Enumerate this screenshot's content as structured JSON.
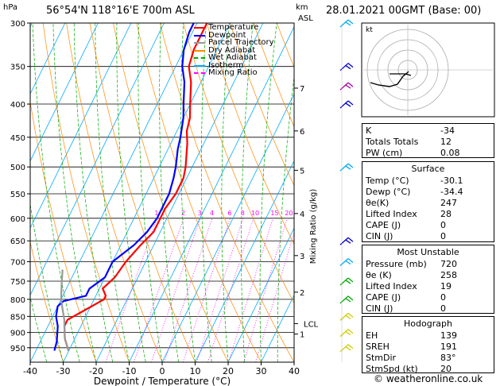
{
  "header": {
    "location": "56°54'N  118°16'E  700m  ASL",
    "datetime": "28.01.2021  00GMT  (Base: 00)",
    "hpa_label": "hPa",
    "km_label": "km",
    "asl_label": "ASL"
  },
  "footer": {
    "credit": "© weatheronline.co.uk"
  },
  "chart_data": {
    "type": "line",
    "title": "",
    "xlabel": "Dewpoint / Temperature (°C)",
    "ylabel": "hPa",
    "right_ylabel": "Mixing Ratio (g/kg)",
    "xlim": [
      -40,
      40
    ],
    "ylim": [
      1000,
      300
    ],
    "skew_deg_per_log": 0,
    "x_ticks": [
      -40,
      -30,
      -20,
      -10,
      0,
      10,
      20,
      30,
      40
    ],
    "pressure_levels": [
      300,
      350,
      400,
      450,
      500,
      550,
      600,
      650,
      700,
      750,
      800,
      850,
      900,
      950
    ],
    "km_ticks": [
      {
        "label": "7",
        "p": 378
      },
      {
        "label": "6",
        "p": 440
      },
      {
        "label": "5",
        "p": 506
      },
      {
        "label": "4",
        "p": 590
      },
      {
        "label": "3",
        "p": 685
      },
      {
        "label": "2",
        "p": 780
      },
      {
        "label": "1",
        "p": 905
      },
      {
        "label": "LCL",
        "p": 872
      }
    ],
    "mixing_ratio_labels": [
      "1",
      "2",
      "3",
      "4",
      "6",
      "8",
      "10",
      "15",
      "20",
      "25"
    ],
    "mixing_ratio_values": [
      1,
      2,
      3,
      4,
      6,
      8,
      10,
      15,
      20,
      25
    ],
    "legend": [
      {
        "name": "Temperature",
        "color": "#ff0000"
      },
      {
        "name": "Dewpoint",
        "color": "#0000ff"
      },
      {
        "name": "Parcel Trajectory",
        "color": "#999999"
      },
      {
        "name": "Dry Adiabat",
        "color": "#ff8800"
      },
      {
        "name": "Wet Adiabat",
        "color": "#00aa00"
      },
      {
        "name": "Isotherm",
        "color": "#00aaff"
      },
      {
        "name": "Mixing Ratio",
        "color": "#ff00ff"
      }
    ],
    "series": [
      {
        "name": "Temperature",
        "color": "#ff0000",
        "points": [
          [
            -30.1,
            960
          ],
          [
            -33,
            920
          ],
          [
            -35,
            880
          ],
          [
            -35,
            860
          ],
          [
            -31,
            830
          ],
          [
            -27,
            800
          ],
          [
            -27,
            790
          ],
          [
            -29,
            770
          ],
          [
            -27,
            740
          ],
          [
            -26,
            700
          ],
          [
            -24,
            660
          ],
          [
            -22,
            630
          ],
          [
            -22,
            600
          ],
          [
            -22,
            580
          ],
          [
            -21,
            550
          ],
          [
            -21,
            520
          ],
          [
            -22,
            500
          ],
          [
            -25,
            460
          ],
          [
            -27,
            440
          ],
          [
            -28,
            420
          ],
          [
            -30,
            400
          ],
          [
            -33,
            370
          ],
          [
            -36,
            350
          ],
          [
            -37,
            330
          ],
          [
            -37,
            310
          ],
          [
            -37,
            300
          ]
        ]
      },
      {
        "name": "Dewpoint",
        "color": "#0000ff",
        "points": [
          [
            -34.4,
            960
          ],
          [
            -35,
            930
          ],
          [
            -37,
            880
          ],
          [
            -39,
            850
          ],
          [
            -40,
            820
          ],
          [
            -39,
            805
          ],
          [
            -33,
            790
          ],
          [
            -33,
            770
          ],
          [
            -30,
            740
          ],
          [
            -30,
            700
          ],
          [
            -26,
            660
          ],
          [
            -24,
            630
          ],
          [
            -23,
            600
          ],
          [
            -23,
            580
          ],
          [
            -23,
            550
          ],
          [
            -24,
            520
          ],
          [
            -25,
            500
          ],
          [
            -27,
            470
          ],
          [
            -28,
            450
          ],
          [
            -30,
            420
          ],
          [
            -32,
            400
          ],
          [
            -35,
            370
          ],
          [
            -38,
            350
          ],
          [
            -40,
            330
          ],
          [
            -41,
            310
          ],
          [
            -41,
            300
          ]
        ]
      },
      {
        "name": "Parcel Trajectory",
        "color": "#999999",
        "points": [
          [
            -30.1,
            960
          ],
          [
            -33,
            920
          ],
          [
            -35,
            880
          ],
          [
            -36,
            860
          ],
          [
            -38,
            830
          ],
          [
            -40,
            800
          ],
          [
            -42,
            760
          ],
          [
            -44,
            720
          ]
        ]
      }
    ],
    "isotherms": [
      -40,
      -30,
      -20,
      -10,
      0,
      10,
      20,
      30,
      40
    ],
    "dry_adiabat_offsets": [
      -60,
      -45,
      -30,
      -15,
      0,
      15,
      30,
      45,
      60,
      75,
      90
    ],
    "wet_adiabat_offsets": [
      -45,
      -30,
      -15,
      0,
      15,
      30,
      45,
      60
    ],
    "wind_barb_levels": [
      {
        "p": 300,
        "color": "#00aaff"
      },
      {
        "p": 350,
        "color": "#0000cc"
      },
      {
        "p": 375,
        "color": "#aa00aa"
      },
      {
        "p": 400,
        "color": "#0000cc"
      },
      {
        "p": 500,
        "color": "#00aaff"
      },
      {
        "p": 650,
        "color": "#0000cc"
      },
      {
        "p": 700,
        "color": "#00aaff"
      },
      {
        "p": 750,
        "color": "#00aa00"
      },
      {
        "p": 800,
        "color": "#00aa00"
      },
      {
        "p": 850,
        "color": "#cccc00"
      },
      {
        "p": 900,
        "color": "#cccc00"
      },
      {
        "p": 950,
        "color": "#cccc00"
      }
    ]
  },
  "hodograph_label": "kt",
  "indices": {
    "rows": [
      {
        "k": "K",
        "v": "-34"
      },
      {
        "k": "Totals Totals",
        "v": "12"
      },
      {
        "k": "PW (cm)",
        "v": "0.08"
      }
    ]
  },
  "surface": {
    "title": "Surface",
    "rows": [
      {
        "k": "Temp (°C)",
        "v": "-30.1"
      },
      {
        "k": "Dewp (°C)",
        "v": "-34.4"
      },
      {
        "k": "θe(K)",
        "v": "247"
      },
      {
        "k": "Lifted Index",
        "v": "28"
      },
      {
        "k": "CAPE (J)",
        "v": "0"
      },
      {
        "k": "CIN (J)",
        "v": "0"
      }
    ]
  },
  "most_unstable": {
    "title": "Most Unstable",
    "rows": [
      {
        "k": "Pressure (mb)",
        "v": "720"
      },
      {
        "k": "θe (K)",
        "v": "258"
      },
      {
        "k": "Lifted Index",
        "v": "19"
      },
      {
        "k": "CAPE (J)",
        "v": "0"
      },
      {
        "k": "CIN (J)",
        "v": "0"
      }
    ]
  },
  "hodograph": {
    "title": "Hodograph",
    "rows": [
      {
        "k": "EH",
        "v": "139"
      },
      {
        "k": "SREH",
        "v": "191"
      },
      {
        "k": "StmDir",
        "v": "83°"
      },
      {
        "k": "StmSpd (kt)",
        "v": "20"
      }
    ]
  }
}
